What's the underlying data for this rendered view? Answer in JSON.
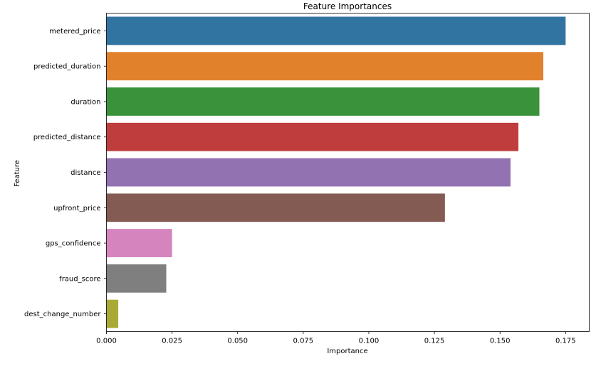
{
  "chart_data": {
    "type": "bar",
    "orientation": "horizontal",
    "title": "Feature Importances",
    "xlabel": "Importance",
    "ylabel": "Feature",
    "categories": [
      "metered_price",
      "predicted_duration",
      "duration",
      "predicted_distance",
      "distance",
      "upfront_price",
      "gps_confidence",
      "fraud_score",
      "dest_change_number"
    ],
    "values": [
      0.175,
      0.1665,
      0.165,
      0.157,
      0.154,
      0.129,
      0.025,
      0.0228,
      0.0045
    ],
    "colors": [
      "#3274a1",
      "#e1812c",
      "#3a923a",
      "#c03d3e",
      "#9372b2",
      "#845b53",
      "#d684bd",
      "#7f7f7f",
      "#a9aa35"
    ],
    "xlim": [
      0,
      0.184
    ],
    "xticks": [
      0.0,
      0.025,
      0.05,
      0.075,
      0.1,
      0.125,
      0.15,
      0.175
    ],
    "xtick_labels": [
      "0.000",
      "0.025",
      "0.050",
      "0.075",
      "0.100",
      "0.125",
      "0.150",
      "0.175"
    ],
    "grid": false,
    "legend": "none"
  }
}
